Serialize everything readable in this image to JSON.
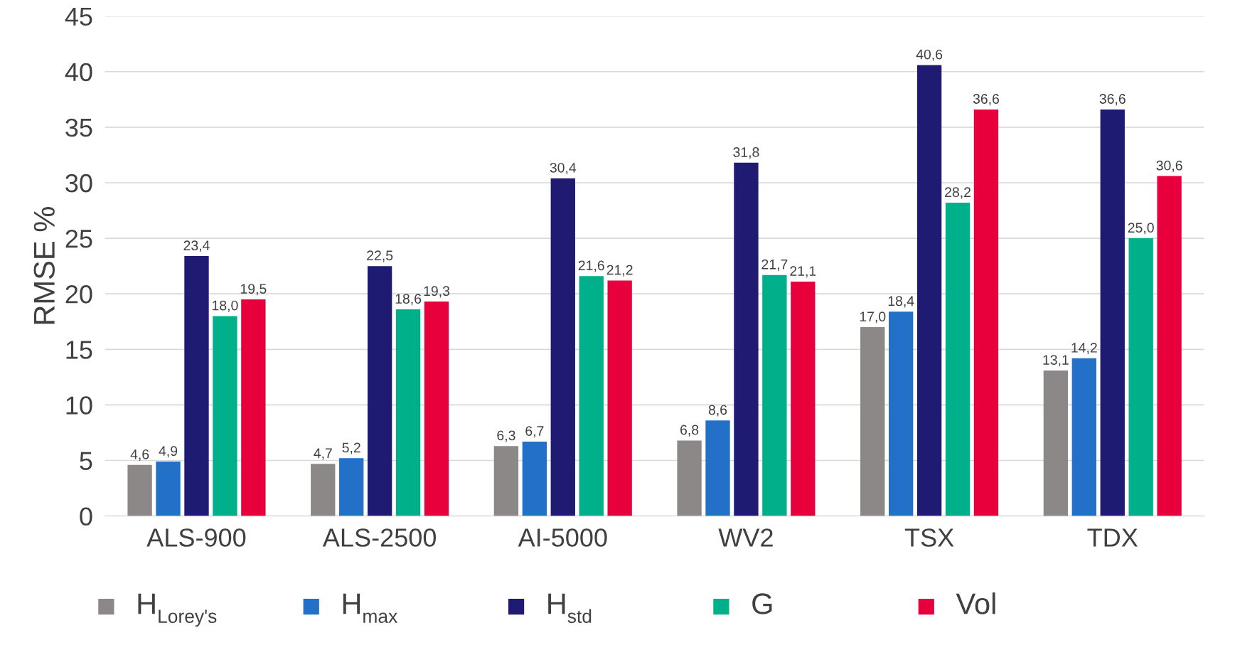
{
  "chart_data": {
    "type": "bar",
    "ylabel": "RMSE %",
    "categories": [
      "ALS-900",
      "ALS-2500",
      "AI-5000",
      "WV2",
      "TSX",
      "TDX"
    ],
    "series": [
      {
        "name": "H$_{Lorey's}$",
        "color": "#8c8887",
        "values": [
          4.6,
          4.7,
          6.3,
          6.8,
          17.0,
          13.1
        ],
        "value_labels": [
          "4,6",
          "4,7",
          "6,3",
          "6,8",
          "17,0",
          "13,1"
        ]
      },
      {
        "name": "H$_{max}$",
        "color": "#2270c8",
        "values": [
          4.9,
          5.2,
          6.7,
          8.6,
          18.4,
          14.2
        ],
        "value_labels": [
          "4,9",
          "5,2",
          "6,7",
          "8,6",
          "18,4",
          "14,2"
        ]
      },
      {
        "name": "H$_{std}$",
        "color": "#1f1a72",
        "values": [
          23.4,
          22.5,
          30.4,
          31.8,
          40.6,
          36.6
        ],
        "value_labels": [
          "23,4",
          "22,5",
          "30,4",
          "31,8",
          "40,6",
          "36,6"
        ]
      },
      {
        "name": "G",
        "color": "#00b08a",
        "values": [
          18.0,
          18.6,
          21.6,
          21.7,
          28.2,
          25.0
        ],
        "value_labels": [
          "18,0",
          "18,6",
          "21,6",
          "21,7",
          "28,2",
          "25,0"
        ]
      },
      {
        "name": "Vol",
        "color": "#e8003c",
        "values": [
          19.5,
          19.3,
          21.2,
          21.1,
          36.6,
          30.6
        ],
        "value_labels": [
          "19,5",
          "19,3",
          "21,2",
          "21,1",
          "36,6",
          "30,6"
        ]
      }
    ],
    "ylim": [
      0,
      45
    ],
    "yticks": [
      0,
      5,
      10,
      15,
      20,
      25,
      30,
      35,
      40,
      45
    ],
    "grid": "y",
    "legend": "bottom"
  }
}
